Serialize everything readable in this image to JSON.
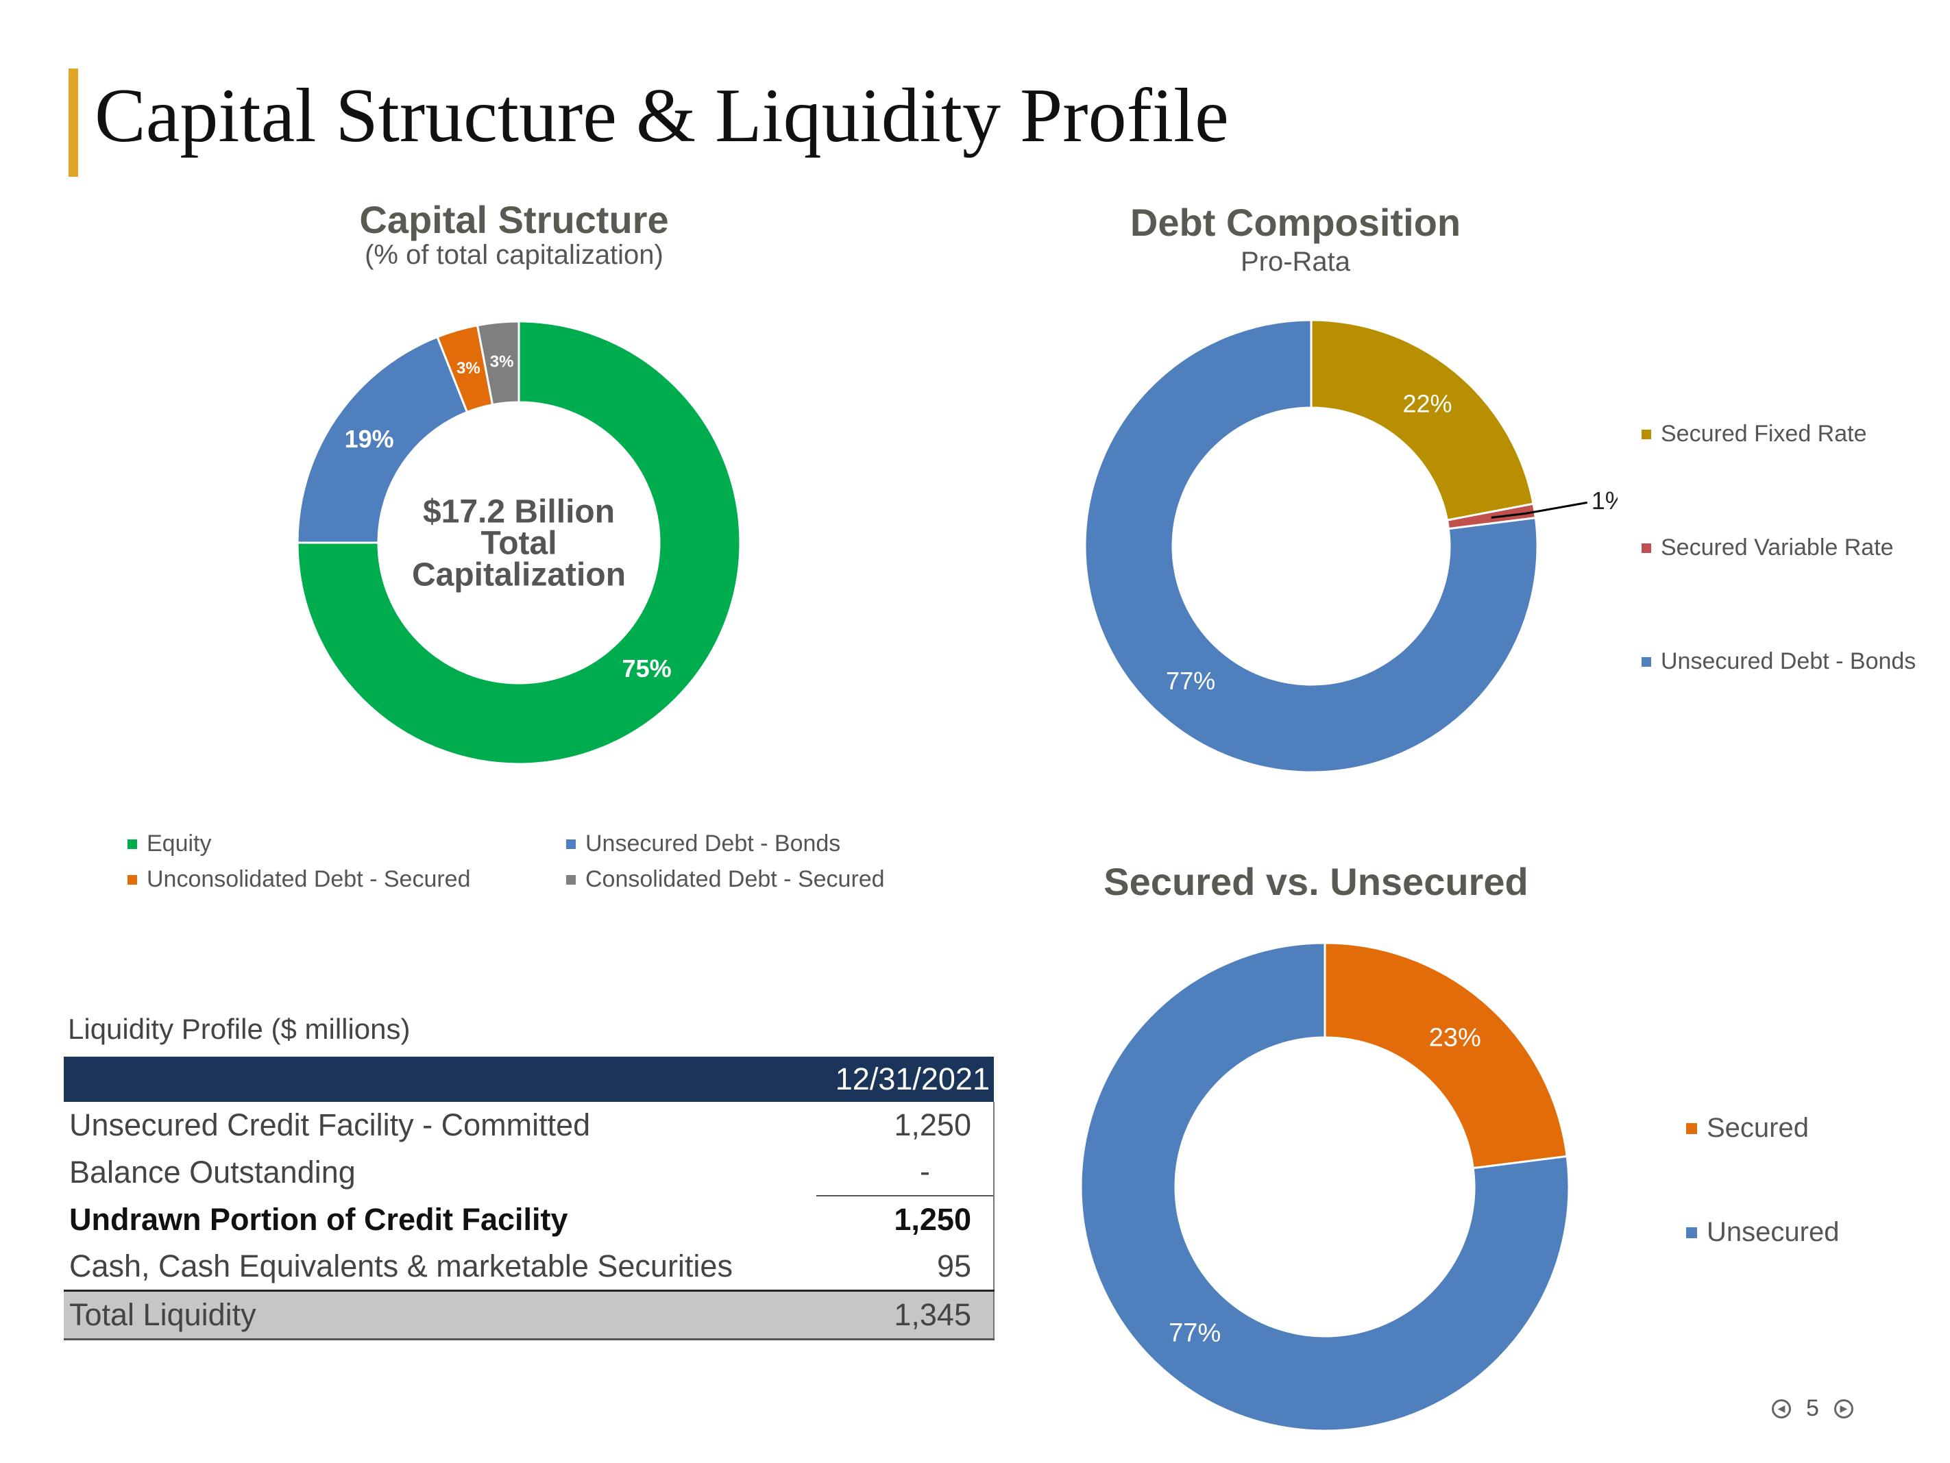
{
  "page": {
    "title": "Capital Structure & Liquidity Profile",
    "page_number": "5",
    "accent_color": "#e0a526"
  },
  "icons": {
    "prev": "prev-page-icon",
    "next": "next-page-icon"
  },
  "chart_data": [
    {
      "type": "pie",
      "title": "Capital Structure",
      "subtitle": "(% of total capitalization)",
      "center_label": [
        "$17.2 Billion",
        "Total",
        "Capitalization"
      ],
      "categories": [
        "Equity",
        "Unsecured Debt - Bonds",
        "Unconsolidated Debt - Secured",
        "Consolidated Debt - Secured"
      ],
      "values": [
        75,
        19,
        3,
        3
      ],
      "data_labels": [
        "75%",
        "19%",
        "3%",
        "3%"
      ],
      "colors": [
        "#00ad4e",
        "#4f80bd",
        "#e36c0a",
        "#7f7f7f"
      ],
      "legend": "bottom"
    },
    {
      "type": "pie",
      "title": "Debt Composition",
      "subtitle": "Pro-Rata",
      "categories": [
        "Secured Fixed Rate",
        "Secured Variable Rate",
        "Unsecured Debt - Bonds"
      ],
      "values": [
        22,
        1,
        77
      ],
      "data_labels": [
        "22%",
        "1%",
        "77%"
      ],
      "colors": [
        "#b88f00",
        "#c0504d",
        "#4f80bd"
      ],
      "legend": "right"
    },
    {
      "type": "pie",
      "title": "Secured vs. Unsecured",
      "categories": [
        "Secured",
        "Unsecured"
      ],
      "values": [
        23,
        77
      ],
      "data_labels": [
        "23%",
        "77%"
      ],
      "colors": [
        "#e36c0a",
        "#4f80bd"
      ],
      "legend": "right"
    }
  ],
  "liquidity": {
    "title": "Liquidity Profile ($ millions)",
    "column_header": "12/31/2021",
    "rows": [
      {
        "label": "Unsecured Credit Facility - Committed",
        "value": "1,250"
      },
      {
        "label": "Balance Outstanding",
        "value": "-"
      },
      {
        "label": "Undrawn Portion of Credit Facility",
        "value": "1,250"
      },
      {
        "label": "Cash, Cash Equivalents & marketable Securities",
        "value": "95"
      },
      {
        "label": "Total Liquidity",
        "value": "1,345"
      }
    ]
  }
}
